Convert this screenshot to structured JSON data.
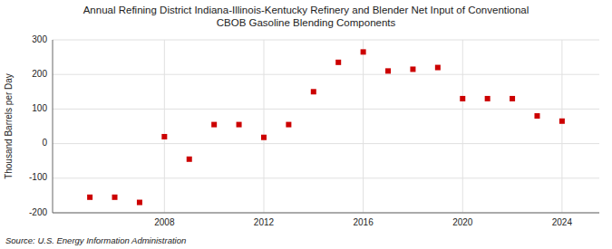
{
  "chart_data": {
    "type": "scatter",
    "title": "Annual Refining District Indiana-Illinois-Kentucky Refinery and Blender Net Input of Conventional\nCBOB Gasoline Blending Components",
    "y_label": "Thousand Barrels per Day",
    "annotations": [
      "Source: U.S. Energy Information Administration"
    ],
    "x": [
      2005,
      2006,
      2007,
      2008,
      2009,
      2010,
      2011,
      2012,
      2013,
      2014,
      2015,
      2016,
      2017,
      2018,
      2019,
      2020,
      2021,
      2022,
      2023,
      2024
    ],
    "values": [
      -155,
      -155,
      -170,
      20,
      -45,
      55,
      55,
      18,
      55,
      150,
      235,
      265,
      210,
      215,
      220,
      130,
      130,
      130,
      80,
      65
    ],
    "color": "#cc0000",
    "marker": "square",
    "xlim": [
      2003.5,
      2025.5
    ],
    "xticks": [
      2008,
      2012,
      2016,
      2020,
      2024
    ],
    "ylim": [
      -200,
      300
    ],
    "yticks": [
      -200,
      -100,
      0,
      100,
      200,
      300
    ],
    "grid": true
  }
}
